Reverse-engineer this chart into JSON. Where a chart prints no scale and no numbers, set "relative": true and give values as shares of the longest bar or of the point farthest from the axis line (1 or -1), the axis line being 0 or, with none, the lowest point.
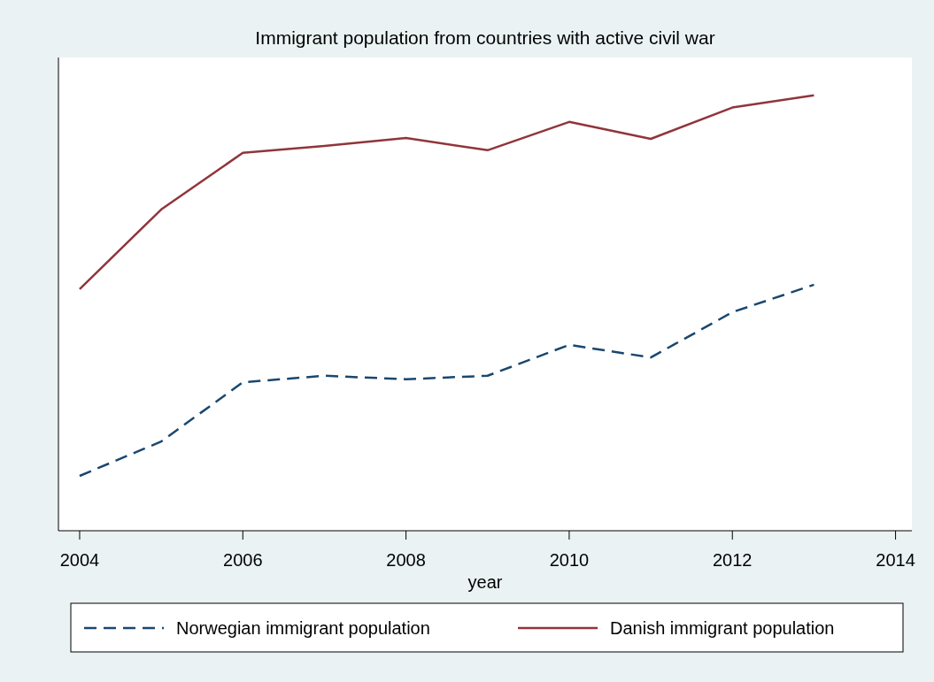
{
  "chart_data": {
    "type": "line",
    "title": "Immigrant population from countries with active civil war",
    "xlabel": "year",
    "relative": true,
    "x": [
      2004,
      2005,
      2006,
      2007,
      2008,
      2009,
      2010,
      2011,
      2012,
      2013
    ],
    "xlim": [
      2003.74,
      2014.2
    ],
    "xticks": [
      2004,
      2006,
      2008,
      2010,
      2012,
      2014
    ],
    "series": [
      {
        "name": "Norwegian immigrant population",
        "color": "#1a476f",
        "line_style": "dashed",
        "values": [
          0.126,
          0.205,
          0.341,
          0.356,
          0.348,
          0.356,
          0.427,
          0.398,
          0.502,
          0.565
        ]
      },
      {
        "name": "Danish immigrant population",
        "color": "#90353b",
        "line_style": "solid",
        "values": [
          0.555,
          0.738,
          0.868,
          0.884,
          0.902,
          0.874,
          0.939,
          0.9,
          0.972,
          1
        ]
      }
    ],
    "legend": "bottom"
  }
}
